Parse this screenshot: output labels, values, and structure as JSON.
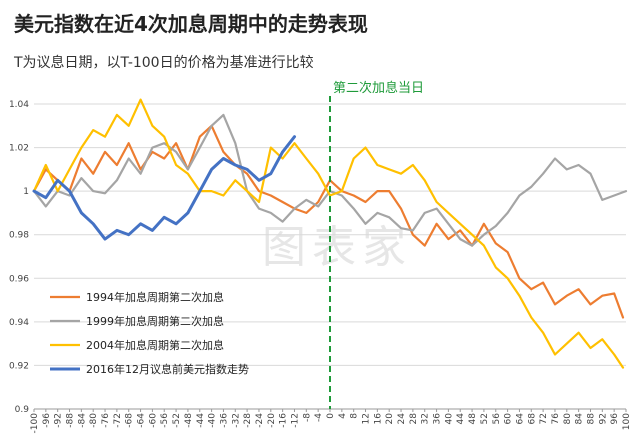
{
  "title": "美元指数在近4次加息周期中的走势表现",
  "subtitle": "T为议息日期，以T-100日的价格为基准进行比较",
  "watermark": "图表家",
  "chart_data": {
    "type": "line",
    "x_range": [
      -100,
      100
    ],
    "x_ticks": [
      -100,
      -96,
      -92,
      -88,
      -84,
      -80,
      -76,
      -72,
      -68,
      -64,
      -60,
      -56,
      -52,
      -48,
      -44,
      -40,
      -36,
      -32,
      -28,
      -24,
      -20,
      -16,
      -12,
      -8,
      -4,
      0,
      4,
      8,
      12,
      16,
      20,
      24,
      28,
      32,
      36,
      40,
      44,
      48,
      52,
      56,
      60,
      64,
      68,
      72,
      76,
      80,
      84,
      88,
      92,
      96,
      100
    ],
    "ylim": [
      0.9,
      1.04
    ],
    "y_ticks": [
      0.9,
      0.92,
      0.94,
      0.96,
      0.98,
      1,
      1.02,
      1.04
    ],
    "y_tick_labels": [
      "0.9",
      "0.92",
      "0.94",
      "0.96",
      "0.98",
      "1",
      "1.02",
      "1.04"
    ],
    "grid": "horizontal",
    "event": {
      "x": 0,
      "label": "第二次加息当日",
      "color": "#1f9b3a"
    },
    "legend_position": "bottom-left",
    "series": [
      {
        "name": "1994年加息周期第二次加息",
        "color": "#ed7d31",
        "x": [
          -100,
          -96,
          -92,
          -88,
          -84,
          -80,
          -76,
          -72,
          -68,
          -64,
          -60,
          -56,
          -52,
          -48,
          -44,
          -40,
          -36,
          -32,
          -28,
          -24,
          -20,
          -16,
          -12,
          -8,
          -4,
          0,
          4,
          8,
          12,
          16,
          20,
          24,
          28,
          32,
          36,
          40,
          44,
          48,
          52,
          56,
          60,
          64,
          68,
          72,
          76,
          80,
          84,
          88,
          92,
          96,
          99
        ],
        "values": [
          1.0,
          1.01,
          1.005,
          1.0,
          1.015,
          1.008,
          1.018,
          1.012,
          1.022,
          1.01,
          1.018,
          1.015,
          1.022,
          1.01,
          1.025,
          1.03,
          1.018,
          1.012,
          1.008,
          1.0,
          0.998,
          0.995,
          0.992,
          0.99,
          0.995,
          1.005,
          1.0,
          0.998,
          0.995,
          1.0,
          1.0,
          0.992,
          0.98,
          0.975,
          0.985,
          0.978,
          0.982,
          0.975,
          0.985,
          0.976,
          0.972,
          0.96,
          0.955,
          0.958,
          0.948,
          0.952,
          0.955,
          0.948,
          0.952,
          0.953,
          0.942
        ]
      },
      {
        "name": "1999年加息周期第二次加息",
        "color": "#a5a5a5",
        "x": [
          -100,
          -96,
          -92,
          -88,
          -84,
          -80,
          -76,
          -72,
          -68,
          -64,
          -60,
          -56,
          -52,
          -48,
          -44,
          -40,
          -36,
          -32,
          -28,
          -24,
          -20,
          -16,
          -12,
          -8,
          -4,
          0,
          4,
          8,
          12,
          16,
          20,
          24,
          28,
          32,
          36,
          40,
          44,
          48,
          52,
          56,
          60,
          64,
          68,
          72,
          76,
          80,
          84,
          88,
          92,
          96,
          100
        ],
        "values": [
          1.0,
          0.993,
          1.0,
          0.998,
          1.006,
          1.0,
          0.999,
          1.005,
          1.015,
          1.008,
          1.02,
          1.022,
          1.018,
          1.01,
          1.02,
          1.03,
          1.035,
          1.022,
          1.0,
          0.992,
          0.99,
          0.986,
          0.992,
          0.996,
          0.993,
          1.0,
          0.998,
          0.992,
          0.985,
          0.99,
          0.988,
          0.983,
          0.982,
          0.99,
          0.992,
          0.985,
          0.978,
          0.975,
          0.98,
          0.984,
          0.99,
          0.998,
          1.002,
          1.008,
          1.015,
          1.01,
          1.012,
          1.008,
          0.996,
          0.998,
          1.0
        ]
      },
      {
        "name": "2004年加息周期第二次加息",
        "color": "#ffc000",
        "x": [
          -100,
          -96,
          -92,
          -88,
          -84,
          -80,
          -76,
          -72,
          -68,
          -64,
          -60,
          -56,
          -52,
          -48,
          -44,
          -40,
          -36,
          -32,
          -28,
          -24,
          -20,
          -16,
          -12,
          -8,
          -4,
          0,
          4,
          8,
          12,
          16,
          20,
          24,
          28,
          32,
          36,
          40,
          44,
          48,
          52,
          56,
          60,
          64,
          68,
          72,
          76,
          80,
          84,
          88,
          92,
          96,
          99
        ],
        "values": [
          1.0,
          1.012,
          1.0,
          1.01,
          1.02,
          1.028,
          1.025,
          1.035,
          1.03,
          1.042,
          1.03,
          1.025,
          1.012,
          1.008,
          1.0,
          1.0,
          0.998,
          1.005,
          1.0,
          0.995,
          1.02,
          1.015,
          1.022,
          1.015,
          1.008,
          0.998,
          1.0,
          1.015,
          1.02,
          1.012,
          1.01,
          1.008,
          1.012,
          1.005,
          0.995,
          0.99,
          0.985,
          0.98,
          0.975,
          0.965,
          0.96,
          0.952,
          0.942,
          0.935,
          0.925,
          0.93,
          0.935,
          0.928,
          0.932,
          0.925,
          0.919
        ]
      },
      {
        "name": "2016年12月议息前美元指数走势",
        "color": "#4472c4",
        "x": [
          -100,
          -96,
          -92,
          -88,
          -84,
          -80,
          -76,
          -72,
          -68,
          -64,
          -60,
          -56,
          -52,
          -48,
          -44,
          -40,
          -36,
          -32,
          -28,
          -24,
          -20,
          -16,
          -12
        ],
        "values": [
          1.0,
          0.997,
          1.005,
          1.0,
          0.99,
          0.985,
          0.978,
          0.982,
          0.98,
          0.985,
          0.982,
          0.988,
          0.985,
          0.99,
          1.0,
          1.01,
          1.015,
          1.012,
          1.01,
          1.005,
          1.008,
          1.018,
          1.025
        ]
      }
    ]
  }
}
